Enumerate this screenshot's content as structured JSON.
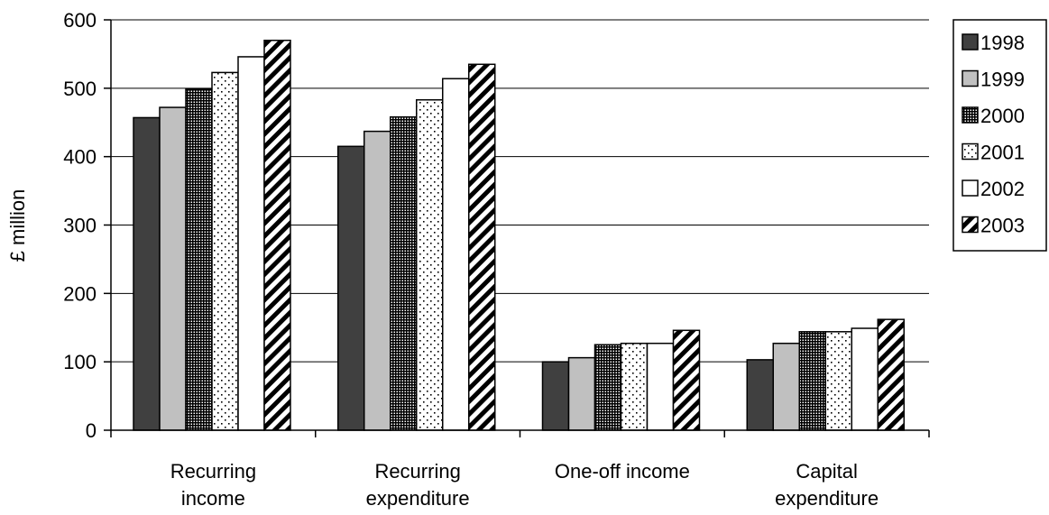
{
  "chart_data": {
    "type": "bar",
    "title": "",
    "xlabel": "",
    "ylabel": "£ million",
    "ylim": [
      0,
      600
    ],
    "yticks": [
      0,
      100,
      200,
      300,
      400,
      500,
      600
    ],
    "grid": true,
    "legend_position": "right",
    "categories": [
      [
        "Recurring",
        "income"
      ],
      [
        "Recurring",
        "expenditure"
      ],
      [
        "One-off income"
      ],
      [
        "Capital",
        "expenditure"
      ]
    ],
    "series": [
      {
        "name": "1998",
        "pattern": "solid-dark",
        "color": "#404040",
        "values": [
          457,
          415,
          100,
          103
        ]
      },
      {
        "name": "1999",
        "pattern": "solid-light",
        "color": "#c0c0c0",
        "values": [
          472,
          437,
          106,
          127
        ]
      },
      {
        "name": "2000",
        "pattern": "grid",
        "color": "#000000",
        "values": [
          499,
          458,
          125,
          144
        ]
      },
      {
        "name": "2001",
        "pattern": "dots",
        "color": "#000000",
        "values": [
          523,
          483,
          127,
          144
        ]
      },
      {
        "name": "2002",
        "pattern": "white",
        "color": "#ffffff",
        "values": [
          546,
          514,
          127,
          149
        ]
      },
      {
        "name": "2003",
        "pattern": "diagonal",
        "color": "#000000",
        "values": [
          570,
          535,
          146,
          162
        ]
      }
    ]
  }
}
